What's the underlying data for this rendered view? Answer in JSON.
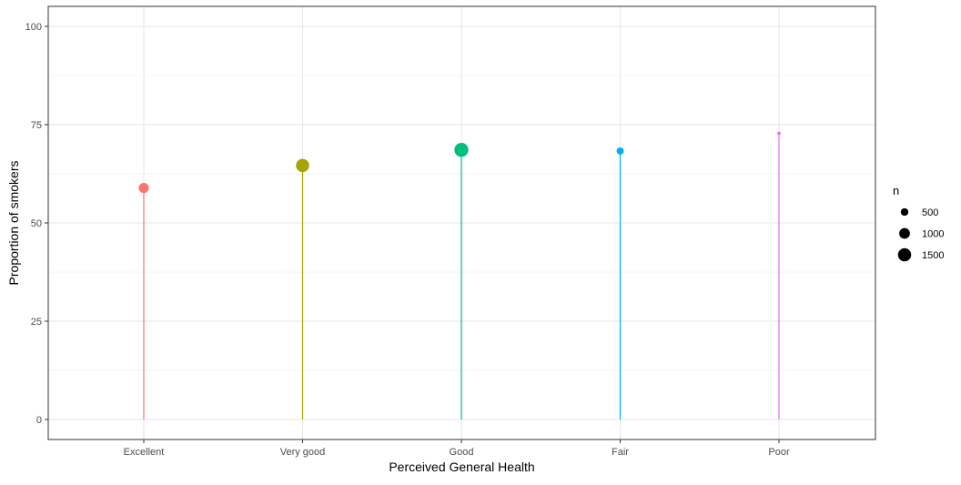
{
  "chart_data": {
    "type": "lollipop",
    "title": "",
    "xlabel": "Perceived General Health",
    "ylabel": "Proportion of smokers",
    "categories": [
      "Excellent",
      "Very good",
      "Good",
      "Fair",
      "Poor"
    ],
    "values": [
      58.9,
      64.6,
      68.6,
      68.3,
      72.8
    ],
    "n": [
      900,
      1500,
      1700,
      450,
      100
    ],
    "colors": [
      "#F8766D",
      "#A3A500",
      "#00BF7D",
      "#00B0F6",
      "#E76BF3"
    ],
    "ylim": [
      0,
      100
    ],
    "yticks": [
      0,
      25,
      50,
      75,
      100
    ],
    "grid": true,
    "legend": {
      "title": "n",
      "position": "right",
      "entries": [
        {
          "label": "500",
          "value": 500
        },
        {
          "label": "1000",
          "value": 1000
        },
        {
          "label": "1500",
          "value": 1500
        }
      ],
      "color": "#000000"
    }
  }
}
